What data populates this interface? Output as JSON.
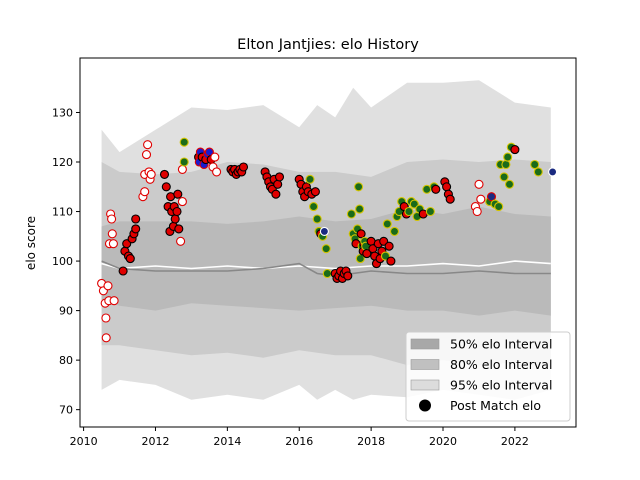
{
  "chart_data": {
    "type": "scatter",
    "title": "Elton Jantjies: elo History",
    "xlabel": "",
    "ylabel": "elo score",
    "xlim": [
      2009.9,
      2023.7
    ],
    "ylim": [
      66.5,
      141.0
    ],
    "x_ticks": [
      2010,
      2012,
      2014,
      2016,
      2018,
      2020,
      2022
    ],
    "y_ticks": [
      70,
      80,
      90,
      100,
      110,
      120,
      130
    ],
    "grid": false,
    "legend_position": "lower-right",
    "legend": [
      {
        "label": "50% elo Interval",
        "kind": "band",
        "color": "#a8a8a8"
      },
      {
        "label": "80% elo Interval",
        "kind": "band",
        "color": "#c0c0c0"
      },
      {
        "label": "95% elo Interval",
        "kind": "band",
        "color": "#dcdcdc"
      },
      {
        "label": "Post Match elo",
        "kind": "marker",
        "color": "#000000"
      }
    ],
    "bands": [
      {
        "name": "95% elo Interval",
        "color": "#e0e0e0",
        "x": [
          2010.5,
          2011.0,
          2012.0,
          2013.0,
          2014.0,
          2015.0,
          2016.0,
          2016.5,
          2017.0,
          2017.5,
          2018.0,
          2019.0,
          2020.0,
          2021.0,
          2022.0,
          2023.0
        ],
        "upper": [
          126.5,
          122.0,
          126.5,
          131.0,
          130.5,
          131.5,
          127.0,
          131.5,
          129.0,
          135.0,
          131.0,
          136.0,
          136.0,
          136.5,
          132.0,
          131.0
        ],
        "lower": [
          74.0,
          76.0,
          75.0,
          72.0,
          73.0,
          72.0,
          75.0,
          72.0,
          74.0,
          72.0,
          73.0,
          72.5,
          74.0,
          73.0,
          72.0,
          74.0
        ]
      },
      {
        "name": "80% elo Interval",
        "color": "#cbcbcb",
        "x": [
          2010.5,
          2011.0,
          2012.0,
          2013.0,
          2014.0,
          2015.0,
          2016.0,
          2017.0,
          2018.0,
          2019.0,
          2020.0,
          2021.0,
          2022.0,
          2023.0
        ],
        "upper": [
          120.0,
          118.0,
          117.5,
          118.0,
          120.0,
          119.5,
          118.0,
          118.0,
          117.0,
          120.0,
          120.5,
          120.0,
          120.5,
          120.0
        ],
        "lower": [
          83.0,
          83.0,
          82.0,
          81.0,
          81.5,
          80.5,
          82.0,
          81.0,
          81.0,
          79.0,
          80.0,
          79.0,
          79.5,
          78.5
        ]
      },
      {
        "name": "50% elo Interval",
        "color": "#bababa",
        "x": [
          2010.5,
          2011.0,
          2012.0,
          2013.0,
          2014.0,
          2015.0,
          2016.0,
          2017.0,
          2018.0,
          2019.0,
          2020.0,
          2021.0,
          2022.0,
          2023.0
        ],
        "upper": [
          107.0,
          108.0,
          108.0,
          108.0,
          107.5,
          108.0,
          109.0,
          108.0,
          108.5,
          110.5,
          109.5,
          111.0,
          109.5,
          109.0
        ],
        "lower": [
          92.0,
          91.0,
          90.0,
          91.5,
          91.0,
          90.5,
          90.0,
          90.5,
          91.0,
          90.0,
          90.0,
          89.0,
          90.0,
          89.0
        ]
      }
    ],
    "lines": [
      {
        "name": "mean",
        "color": "#ffffff",
        "x": [
          2010.5,
          2011.0,
          2012.0,
          2013.0,
          2014.0,
          2015.0,
          2016.0,
          2017.0,
          2018.0,
          2019.0,
          2020.0,
          2021.0,
          2022.0,
          2023.0
        ],
        "y": [
          99.5,
          98.5,
          99.0,
          98.5,
          99.0,
          98.5,
          99.0,
          98.5,
          99.0,
          99.0,
          99.5,
          99.0,
          100.0,
          99.5
        ]
      },
      {
        "name": "median",
        "color": "#888888",
        "x": [
          2010.5,
          2011.0,
          2012.0,
          2013.0,
          2014.0,
          2015.0,
          2016.0,
          2016.5,
          2017.0,
          2018.0,
          2019.0,
          2020.0,
          2021.0,
          2022.0,
          2023.0
        ],
        "y": [
          100.0,
          98.5,
          98.0,
          98.0,
          98.0,
          98.5,
          99.5,
          97.5,
          97.0,
          98.0,
          97.5,
          97.5,
          98.0,
          97.5,
          97.5
        ]
      }
    ],
    "points": [
      {
        "x": 2010.5,
        "y": 95.5,
        "style": "open"
      },
      {
        "x": 2010.55,
        "y": 94.0,
        "style": "open"
      },
      {
        "x": 2010.6,
        "y": 91.5,
        "style": "open"
      },
      {
        "x": 2010.62,
        "y": 88.5,
        "style": "open"
      },
      {
        "x": 2010.63,
        "y": 84.5,
        "style": "open"
      },
      {
        "x": 2010.68,
        "y": 95.0,
        "style": "open"
      },
      {
        "x": 2010.7,
        "y": 92.0,
        "style": "open"
      },
      {
        "x": 2010.72,
        "y": 103.5,
        "style": "open"
      },
      {
        "x": 2010.75,
        "y": 109.5,
        "style": "open"
      },
      {
        "x": 2010.78,
        "y": 108.5,
        "style": "open"
      },
      {
        "x": 2010.8,
        "y": 105.5,
        "style": "open"
      },
      {
        "x": 2010.83,
        "y": 103.5,
        "style": "open"
      },
      {
        "x": 2010.85,
        "y": 92.0,
        "style": "open"
      },
      {
        "x": 2011.1,
        "y": 98.0,
        "style": "red"
      },
      {
        "x": 2011.15,
        "y": 102.0,
        "style": "red"
      },
      {
        "x": 2011.2,
        "y": 103.5,
        "style": "red"
      },
      {
        "x": 2011.25,
        "y": 101.0,
        "style": "red"
      },
      {
        "x": 2011.3,
        "y": 100.5,
        "style": "red"
      },
      {
        "x": 2011.35,
        "y": 104.5,
        "style": "red"
      },
      {
        "x": 2011.4,
        "y": 105.5,
        "style": "red"
      },
      {
        "x": 2011.45,
        "y": 106.5,
        "style": "red"
      },
      {
        "x": 2011.45,
        "y": 108.5,
        "style": "red"
      },
      {
        "x": 2011.65,
        "y": 113.0,
        "style": "open"
      },
      {
        "x": 2011.7,
        "y": 114.0,
        "style": "open"
      },
      {
        "x": 2011.7,
        "y": 117.5,
        "style": "open"
      },
      {
        "x": 2011.75,
        "y": 121.5,
        "style": "open"
      },
      {
        "x": 2011.78,
        "y": 123.5,
        "style": "open"
      },
      {
        "x": 2011.82,
        "y": 118.0,
        "style": "open"
      },
      {
        "x": 2011.85,
        "y": 116.5,
        "style": "open"
      },
      {
        "x": 2011.88,
        "y": 117.5,
        "style": "open"
      },
      {
        "x": 2012.25,
        "y": 117.5,
        "style": "red"
      },
      {
        "x": 2012.3,
        "y": 115.0,
        "style": "red"
      },
      {
        "x": 2012.35,
        "y": 111.0,
        "style": "red"
      },
      {
        "x": 2012.4,
        "y": 106.0,
        "style": "red"
      },
      {
        "x": 2012.42,
        "y": 113.0,
        "style": "red"
      },
      {
        "x": 2012.45,
        "y": 110.0,
        "style": "red"
      },
      {
        "x": 2012.5,
        "y": 107.0,
        "style": "red"
      },
      {
        "x": 2012.52,
        "y": 111.0,
        "style": "red"
      },
      {
        "x": 2012.55,
        "y": 108.5,
        "style": "red"
      },
      {
        "x": 2012.6,
        "y": 110.0,
        "style": "red"
      },
      {
        "x": 2012.62,
        "y": 113.5,
        "style": "red"
      },
      {
        "x": 2012.65,
        "y": 106.5,
        "style": "red"
      },
      {
        "x": 2012.7,
        "y": 104.0,
        "style": "open"
      },
      {
        "x": 2012.75,
        "y": 112.0,
        "style": "open"
      },
      {
        "x": 2012.75,
        "y": 118.5,
        "style": "open"
      },
      {
        "x": 2012.8,
        "y": 120.0,
        "style": "green"
      },
      {
        "x": 2012.8,
        "y": 124.0,
        "style": "green"
      },
      {
        "x": 2013.2,
        "y": 121.0,
        "style": "red"
      },
      {
        "x": 2013.22,
        "y": 120.0,
        "style": "blue"
      },
      {
        "x": 2013.25,
        "y": 122.0,
        "style": "blue"
      },
      {
        "x": 2013.3,
        "y": 121.0,
        "style": "red"
      },
      {
        "x": 2013.35,
        "y": 119.5,
        "style": "blue"
      },
      {
        "x": 2013.4,
        "y": 120.5,
        "style": "red"
      },
      {
        "x": 2013.45,
        "y": 121.5,
        "style": "blue"
      },
      {
        "x": 2013.5,
        "y": 122.0,
        "style": "blue"
      },
      {
        "x": 2013.55,
        "y": 120.5,
        "style": "red"
      },
      {
        "x": 2013.6,
        "y": 119.0,
        "style": "open"
      },
      {
        "x": 2013.65,
        "y": 121.0,
        "style": "open"
      },
      {
        "x": 2013.7,
        "y": 118.0,
        "style": "open"
      },
      {
        "x": 2014.1,
        "y": 118.5,
        "style": "red"
      },
      {
        "x": 2014.15,
        "y": 118.0,
        "style": "red"
      },
      {
        "x": 2014.2,
        "y": 118.5,
        "style": "red"
      },
      {
        "x": 2014.25,
        "y": 117.5,
        "style": "red"
      },
      {
        "x": 2014.3,
        "y": 118.0,
        "style": "red"
      },
      {
        "x": 2014.35,
        "y": 118.5,
        "style": "red"
      },
      {
        "x": 2014.4,
        "y": 118.0,
        "style": "red"
      },
      {
        "x": 2014.45,
        "y": 119.0,
        "style": "red"
      },
      {
        "x": 2015.05,
        "y": 118.0,
        "style": "red"
      },
      {
        "x": 2015.1,
        "y": 117.0,
        "style": "red"
      },
      {
        "x": 2015.15,
        "y": 116.0,
        "style": "red"
      },
      {
        "x": 2015.2,
        "y": 115.0,
        "style": "red"
      },
      {
        "x": 2015.25,
        "y": 114.5,
        "style": "red"
      },
      {
        "x": 2015.3,
        "y": 116.5,
        "style": "red"
      },
      {
        "x": 2015.35,
        "y": 113.5,
        "style": "red"
      },
      {
        "x": 2015.4,
        "y": 115.5,
        "style": "red"
      },
      {
        "x": 2015.45,
        "y": 117.0,
        "style": "red"
      },
      {
        "x": 2016.0,
        "y": 116.5,
        "style": "red"
      },
      {
        "x": 2016.05,
        "y": 115.5,
        "style": "red"
      },
      {
        "x": 2016.1,
        "y": 114.0,
        "style": "red"
      },
      {
        "x": 2016.15,
        "y": 113.0,
        "style": "red"
      },
      {
        "x": 2016.2,
        "y": 115.0,
        "style": "red"
      },
      {
        "x": 2016.25,
        "y": 114.0,
        "style": "red"
      },
      {
        "x": 2016.3,
        "y": 116.5,
        "style": "green"
      },
      {
        "x": 2016.35,
        "y": 113.5,
        "style": "red"
      },
      {
        "x": 2016.4,
        "y": 111.0,
        "style": "green"
      },
      {
        "x": 2016.45,
        "y": 114.0,
        "style": "red"
      },
      {
        "x": 2016.5,
        "y": 108.5,
        "style": "green"
      },
      {
        "x": 2016.55,
        "y": 106.0,
        "style": "green"
      },
      {
        "x": 2016.6,
        "y": 105.5,
        "style": "red"
      },
      {
        "x": 2016.65,
        "y": 105.0,
        "style": "green"
      },
      {
        "x": 2016.7,
        "y": 106.0,
        "style": "navy"
      },
      {
        "x": 2016.75,
        "y": 102.5,
        "style": "green"
      },
      {
        "x": 2016.78,
        "y": 97.5,
        "style": "green"
      },
      {
        "x": 2017.0,
        "y": 97.5,
        "style": "red"
      },
      {
        "x": 2017.05,
        "y": 96.5,
        "style": "red"
      },
      {
        "x": 2017.1,
        "y": 97.0,
        "style": "red"
      },
      {
        "x": 2017.15,
        "y": 98.0,
        "style": "red"
      },
      {
        "x": 2017.2,
        "y": 96.5,
        "style": "red"
      },
      {
        "x": 2017.25,
        "y": 97.5,
        "style": "red"
      },
      {
        "x": 2017.3,
        "y": 98.0,
        "style": "red"
      },
      {
        "x": 2017.35,
        "y": 97.0,
        "style": "red"
      },
      {
        "x": 2017.45,
        "y": 109.5,
        "style": "green"
      },
      {
        "x": 2017.5,
        "y": 105.5,
        "style": "green"
      },
      {
        "x": 2017.55,
        "y": 104.5,
        "style": "green"
      },
      {
        "x": 2017.58,
        "y": 103.5,
        "style": "red"
      },
      {
        "x": 2017.62,
        "y": 106.5,
        "style": "green"
      },
      {
        "x": 2017.65,
        "y": 115.0,
        "style": "green"
      },
      {
        "x": 2017.68,
        "y": 110.5,
        "style": "green"
      },
      {
        "x": 2017.7,
        "y": 100.5,
        "style": "green"
      },
      {
        "x": 2017.72,
        "y": 105.5,
        "style": "red"
      },
      {
        "x": 2017.75,
        "y": 103.0,
        "style": "green"
      },
      {
        "x": 2017.78,
        "y": 102.0,
        "style": "red"
      },
      {
        "x": 2017.8,
        "y": 103.5,
        "style": "red"
      },
      {
        "x": 2017.82,
        "y": 104.0,
        "style": "green"
      },
      {
        "x": 2017.85,
        "y": 103.0,
        "style": "green"
      },
      {
        "x": 2017.88,
        "y": 101.5,
        "style": "red"
      },
      {
        "x": 2018.0,
        "y": 104.0,
        "style": "red"
      },
      {
        "x": 2018.05,
        "y": 102.5,
        "style": "red"
      },
      {
        "x": 2018.1,
        "y": 101.0,
        "style": "red"
      },
      {
        "x": 2018.15,
        "y": 99.5,
        "style": "red"
      },
      {
        "x": 2018.2,
        "y": 103.5,
        "style": "red"
      },
      {
        "x": 2018.25,
        "y": 100.5,
        "style": "red"
      },
      {
        "x": 2018.3,
        "y": 102.0,
        "style": "red"
      },
      {
        "x": 2018.35,
        "y": 104.0,
        "style": "red"
      },
      {
        "x": 2018.4,
        "y": 101.0,
        "style": "green"
      },
      {
        "x": 2018.45,
        "y": 107.5,
        "style": "green"
      },
      {
        "x": 2018.5,
        "y": 103.0,
        "style": "red"
      },
      {
        "x": 2018.55,
        "y": 100.0,
        "style": "red"
      },
      {
        "x": 2018.65,
        "y": 106.0,
        "style": "green"
      },
      {
        "x": 2018.72,
        "y": 109.0,
        "style": "green"
      },
      {
        "x": 2018.78,
        "y": 110.0,
        "style": "green"
      },
      {
        "x": 2018.85,
        "y": 112.0,
        "style": "green"
      },
      {
        "x": 2018.92,
        "y": 111.0,
        "style": "red"
      },
      {
        "x": 2018.98,
        "y": 109.5,
        "style": "red"
      },
      {
        "x": 2019.05,
        "y": 110.0,
        "style": "green"
      },
      {
        "x": 2019.12,
        "y": 112.0,
        "style": "green"
      },
      {
        "x": 2019.2,
        "y": 111.5,
        "style": "green"
      },
      {
        "x": 2019.28,
        "y": 109.0,
        "style": "green"
      },
      {
        "x": 2019.35,
        "y": 110.5,
        "style": "green"
      },
      {
        "x": 2019.45,
        "y": 109.5,
        "style": "red"
      },
      {
        "x": 2019.55,
        "y": 114.5,
        "style": "green"
      },
      {
        "x": 2019.65,
        "y": 110.0,
        "style": "green"
      },
      {
        "x": 2019.75,
        "y": 115.0,
        "style": "green"
      },
      {
        "x": 2019.8,
        "y": 114.5,
        "style": "red"
      },
      {
        "x": 2020.05,
        "y": 116.0,
        "style": "red"
      },
      {
        "x": 2020.1,
        "y": 115.0,
        "style": "red"
      },
      {
        "x": 2020.15,
        "y": 113.5,
        "style": "red"
      },
      {
        "x": 2020.2,
        "y": 112.5,
        "style": "red"
      },
      {
        "x": 2020.9,
        "y": 111.0,
        "style": "open"
      },
      {
        "x": 2020.95,
        "y": 110.0,
        "style": "open"
      },
      {
        "x": 2021.0,
        "y": 115.5,
        "style": "open"
      },
      {
        "x": 2021.05,
        "y": 112.5,
        "style": "open"
      },
      {
        "x": 2021.3,
        "y": 112.0,
        "style": "green"
      },
      {
        "x": 2021.35,
        "y": 113.0,
        "style": "blue-dark"
      },
      {
        "x": 2021.45,
        "y": 111.5,
        "style": "green"
      },
      {
        "x": 2021.55,
        "y": 111.0,
        "style": "green"
      },
      {
        "x": 2021.6,
        "y": 119.5,
        "style": "green"
      },
      {
        "x": 2021.7,
        "y": 117.0,
        "style": "green"
      },
      {
        "x": 2021.75,
        "y": 119.5,
        "style": "green"
      },
      {
        "x": 2021.8,
        "y": 121.0,
        "style": "green"
      },
      {
        "x": 2021.85,
        "y": 115.5,
        "style": "green"
      },
      {
        "x": 2021.9,
        "y": 123.0,
        "style": "green"
      },
      {
        "x": 2022.0,
        "y": 122.5,
        "style": "red"
      },
      {
        "x": 2022.55,
        "y": 119.5,
        "style": "green"
      },
      {
        "x": 2022.65,
        "y": 118.0,
        "style": "green"
      },
      {
        "x": 2023.05,
        "y": 118.0,
        "style": "navy"
      }
    ]
  }
}
